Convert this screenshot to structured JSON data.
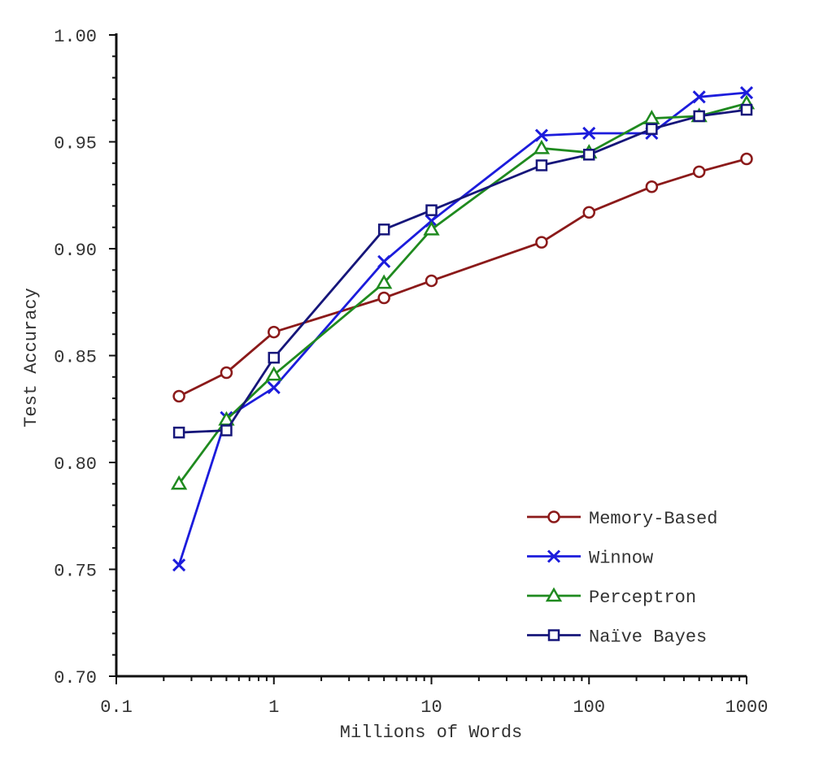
{
  "chart_data": {
    "type": "line",
    "xlabel": "Millions of Words",
    "ylabel": "Test Accuracy",
    "xscale": "log",
    "xlim": [
      0.1,
      1000
    ],
    "ylim": [
      0.7,
      1.0
    ],
    "xticks": [
      0.1,
      1,
      10,
      100,
      1000
    ],
    "xtick_labels": [
      "0.1",
      "1",
      "10",
      "100",
      "1000"
    ],
    "yticks": [
      0.7,
      0.75,
      0.8,
      0.85,
      0.9,
      0.95,
      1.0
    ],
    "ytick_labels": [
      "0.70",
      "0.75",
      "0.80",
      "0.85",
      "0.90",
      "0.95",
      "1.00"
    ],
    "grid": false,
    "legend_position": "bottom-right",
    "series": [
      {
        "name": "Memory-Based",
        "color": "#8b1a1a",
        "marker": "circle",
        "x": [
          0.25,
          0.5,
          1,
          5,
          10,
          50,
          100,
          250,
          500,
          1000
        ],
        "y": [
          0.831,
          0.842,
          0.861,
          0.877,
          0.885,
          0.903,
          0.917,
          0.929,
          0.936,
          0.942
        ]
      },
      {
        "name": "Winnow",
        "color": "#1c1cdc",
        "marker": "x",
        "x": [
          0.25,
          0.5,
          1,
          5,
          10,
          50,
          100,
          250,
          500,
          1000
        ],
        "y": [
          0.752,
          0.821,
          0.835,
          0.894,
          0.913,
          0.953,
          0.954,
          0.954,
          0.971,
          0.973
        ]
      },
      {
        "name": "Perceptron",
        "color": "#1f8a1f",
        "marker": "triangle",
        "x": [
          0.25,
          0.5,
          1,
          5,
          10,
          50,
          100,
          250,
          500,
          1000
        ],
        "y": [
          0.79,
          0.82,
          0.841,
          0.884,
          0.909,
          0.947,
          0.945,
          0.961,
          0.962,
          0.968
        ]
      },
      {
        "name": "Naïve Bayes",
        "color": "#16167a",
        "marker": "square",
        "x": [
          0.25,
          0.5,
          1,
          5,
          10,
          50,
          100,
          250,
          500,
          1000
        ],
        "y": [
          0.814,
          0.815,
          0.849,
          0.909,
          0.918,
          0.939,
          0.944,
          0.956,
          0.962,
          0.965
        ]
      }
    ]
  }
}
